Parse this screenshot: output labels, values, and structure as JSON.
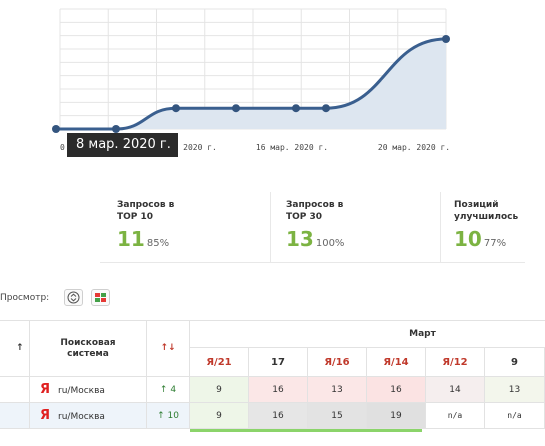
{
  "chart_data": {
    "type": "area",
    "x_labels": [
      "0",
      "2020 г.",
      "16 мар. 2020 г.",
      "20 мар. 2020 г."
    ],
    "points": [
      {
        "date": "2020-03-08",
        "value": 0
      },
      {
        "date": "2020-03-10",
        "value": 0
      },
      {
        "date": "2020-03-12",
        "value": 3
      },
      {
        "date": "2020-03-14",
        "value": 3
      },
      {
        "date": "2020-03-16",
        "value": 3
      },
      {
        "date": "2020-03-17",
        "value": 3
      },
      {
        "date": "2020-03-21",
        "value": 13
      }
    ],
    "line_color": "#3a5f8f",
    "fill_color": "#dde6f0",
    "grid": true
  },
  "tooltip": {
    "text": "8 мар. 2020 г."
  },
  "stats": [
    {
      "label": "Запросов в TOP 10",
      "value": "11",
      "percent": "85%"
    },
    {
      "label": "Запросов в TOP 30",
      "value": "13",
      "percent": "100%"
    },
    {
      "label": "Позиций улучшилось",
      "value": "10",
      "percent": "77%"
    }
  ],
  "view": {
    "label": "Просмотр:"
  },
  "table": {
    "sort_arrow": "↑",
    "search_header": "Поисковая система",
    "change_header": "↑↓",
    "month": "Март",
    "columns": [
      "Я/21",
      "17",
      "Я/16",
      "Я/14",
      "Я/12",
      "9"
    ],
    "rows": [
      {
        "engine_icon": "Я",
        "region": "ru/Москва",
        "change": "↑ 4",
        "cells": [
          "9",
          "16",
          "13",
          "16",
          "14",
          "13"
        ]
      },
      {
        "engine_icon": "Я",
        "region": "ru/Москва",
        "change": "↑ 10",
        "cells": [
          "9",
          "16",
          "15",
          "19",
          "n/a",
          "n/a"
        ]
      }
    ]
  },
  "colors": {
    "accent_green": "#7cb342",
    "yandex_red": "#e02020",
    "header_col": "#c0392b"
  }
}
